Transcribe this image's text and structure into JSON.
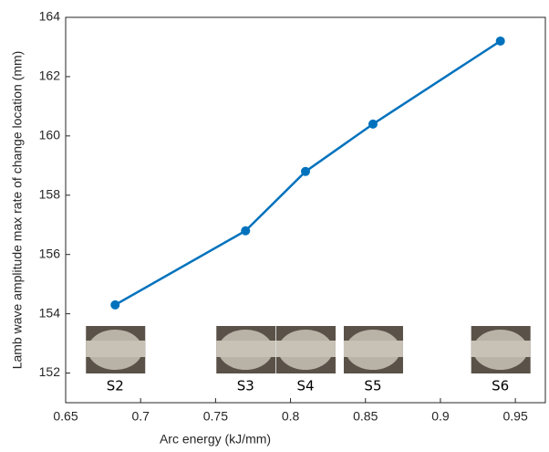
{
  "chart_data": {
    "type": "line",
    "xlabel": "Arc energy (kJ/mm)",
    "ylabel": "Lamb wave amplitude max rate of change location (mm)",
    "x": [
      0.683,
      0.77,
      0.81,
      0.855,
      0.94
    ],
    "series": [
      {
        "color": "#0072bd",
        "values": [
          154.3,
          156.8,
          158.8,
          160.4,
          163.2
        ]
      }
    ],
    "annotations": [
      "S2",
      "S3",
      "S4",
      "S5",
      "S6"
    ],
    "xlim": [
      0.65,
      0.97
    ],
    "xticks": [
      0.65,
      0.7,
      0.75,
      0.8,
      0.85,
      0.9,
      0.95
    ],
    "ylim": [
      151,
      164
    ],
    "yticks": [
      152,
      154,
      156,
      158,
      160,
      162,
      164
    ],
    "grid": false
  }
}
